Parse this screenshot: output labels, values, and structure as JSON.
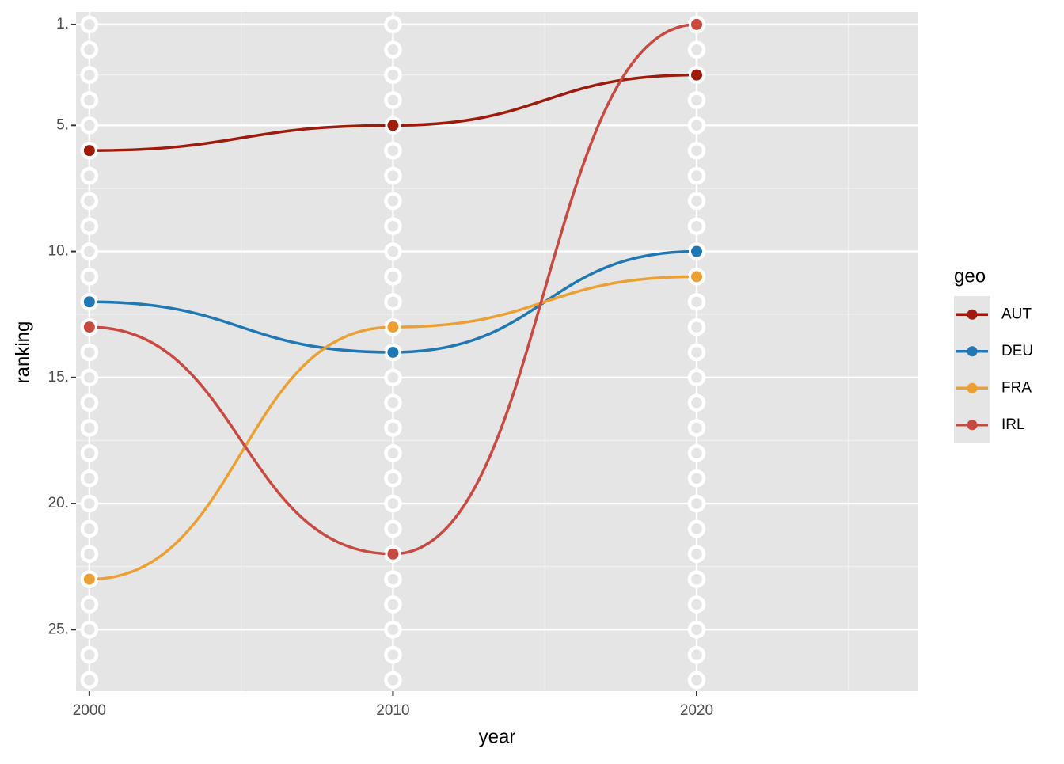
{
  "chart_data": {
    "type": "bump",
    "x_label": "year",
    "y_label": "ranking",
    "legend_title": "geo",
    "x": [
      2000,
      2010,
      2020
    ],
    "ranks": [
      1,
      2,
      3,
      4,
      5,
      6,
      7,
      8,
      9,
      10,
      11,
      12,
      13,
      14,
      15,
      16,
      17,
      18,
      19,
      20,
      21,
      22,
      23,
      24,
      25,
      26,
      27
    ],
    "series": [
      {
        "name": "AUT",
        "color": "#9e1a0b",
        "values": [
          6,
          5,
          3
        ]
      },
      {
        "name": "DEU",
        "color": "#1f78b4",
        "values": [
          12,
          14,
          10
        ]
      },
      {
        "name": "FRA",
        "color": "#eca032",
        "values": [
          23,
          13,
          11
        ]
      },
      {
        "name": "IRL",
        "color": "#c8493f",
        "values": [
          13,
          22,
          1
        ]
      }
    ],
    "xlim": [
      1999.56,
      2027.3
    ],
    "xticks": [
      2000,
      2010,
      2020
    ],
    "xminor": [
      2005,
      2015,
      2025
    ],
    "ylim": [
      0.5,
      27.44
    ],
    "y_reversed": true,
    "yticks": [
      {
        "value": 1,
        "label": "1."
      },
      {
        "value": 5,
        "label": "5."
      },
      {
        "value": 10,
        "label": "10."
      },
      {
        "value": 15,
        "label": "15."
      },
      {
        "value": 20,
        "label": "20."
      },
      {
        "value": 25,
        "label": "25."
      }
    ],
    "yminor": [
      3,
      7.5,
      12.5,
      17.5,
      22.5
    ],
    "grid": true,
    "legend": "right"
  }
}
